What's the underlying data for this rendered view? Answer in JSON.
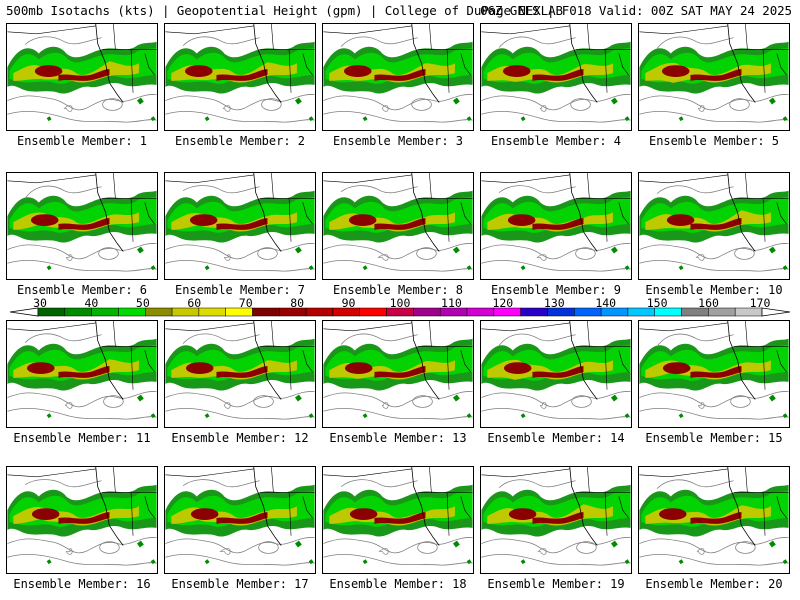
{
  "header": {
    "title_left": "500mb Isotachs (kts) | Geopotential Height (gpm) | College of DuPage NEXLAB",
    "title_right": "06Z GEFS | F018 Valid: 00Z SAT MAY 24 2025"
  },
  "panels": [
    {
      "label": "Ensemble Member: 1"
    },
    {
      "label": "Ensemble Member: 2"
    },
    {
      "label": "Ensemble Member: 3"
    },
    {
      "label": "Ensemble Member: 4"
    },
    {
      "label": "Ensemble Member: 5"
    },
    {
      "label": "Ensemble Member: 6"
    },
    {
      "label": "Ensemble Member: 7"
    },
    {
      "label": "Ensemble Member: 8"
    },
    {
      "label": "Ensemble Member: 9"
    },
    {
      "label": "Ensemble Member: 10"
    },
    {
      "label": "Ensemble Member: 11"
    },
    {
      "label": "Ensemble Member: 12"
    },
    {
      "label": "Ensemble Member: 13"
    },
    {
      "label": "Ensemble Member: 14"
    },
    {
      "label": "Ensemble Member: 15"
    },
    {
      "label": "Ensemble Member: 16"
    },
    {
      "label": "Ensemble Member: 17"
    },
    {
      "label": "Ensemble Member: 18"
    },
    {
      "label": "Ensemble Member: 19"
    },
    {
      "label": "Ensemble Member: 20"
    }
  ],
  "colorbar": {
    "ticks": [
      "30",
      "40",
      "50",
      "60",
      "70",
      "80",
      "90",
      "100",
      "110",
      "120",
      "130",
      "140",
      "150",
      "160",
      "170"
    ],
    "colors": [
      "#006400",
      "#008c00",
      "#00b400",
      "#00dc00",
      "#8c8c00",
      "#c8c800",
      "#dcdc00",
      "#ffff00",
      "#7f0000",
      "#9b0000",
      "#b40000",
      "#d20000",
      "#ff0000",
      "#c80046",
      "#a0008c",
      "#b400b4",
      "#d200d2",
      "#ff00ff",
      "#2800c8",
      "#0032dc",
      "#0064ff",
      "#0096ff",
      "#00c8ff",
      "#00ffff",
      "#808080",
      "#a0a0a0",
      "#c8c8c8"
    ]
  },
  "map_colors": {
    "green_dark": "#008c00",
    "green_light": "#00dc00",
    "yellow": "#c8c800",
    "maroon": "#8b0000",
    "height_contour": "#808080",
    "boundary": "#000000"
  }
}
